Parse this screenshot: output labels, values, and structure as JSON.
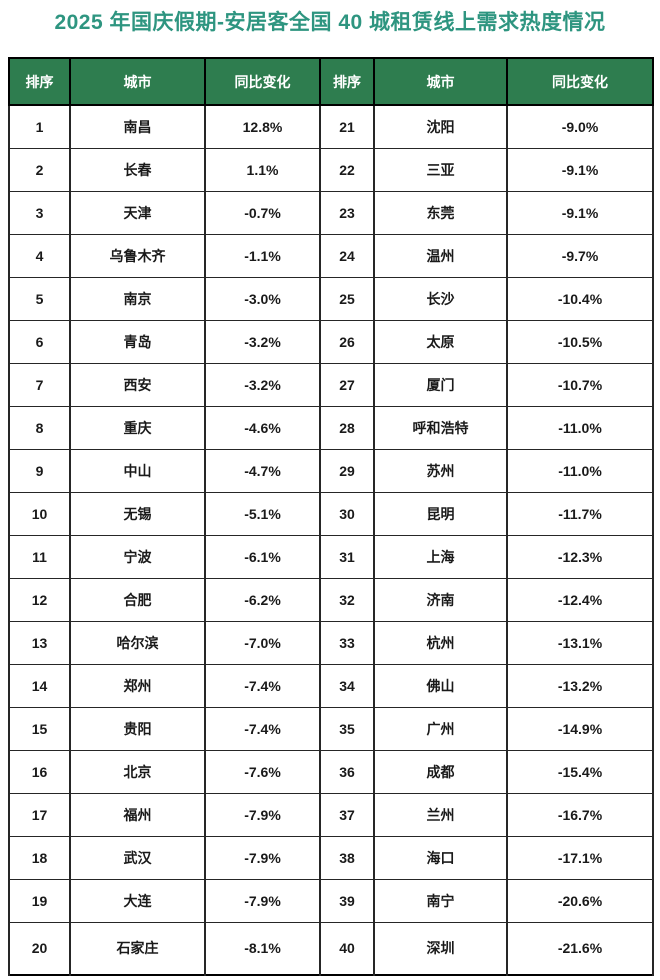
{
  "page": {
    "title": "2025 年国庆假期-安居客全国 40 城租赁线上需求热度情况"
  },
  "colors": {
    "title_text": "#2e9580",
    "header_bg": "#2e7d4f",
    "header_text": "#ffffff",
    "cell_text": "#1a1a1a",
    "border": "#000000",
    "background": "#ffffff"
  },
  "table": {
    "headers": [
      "排序",
      "城市",
      "同比变化",
      "排序",
      "城市",
      "同比变化"
    ]
  },
  "chart_data": {
    "type": "table",
    "title": "2025 年国庆假期-安居客全国 40 城租赁线上需求热度情况",
    "columns": [
      "排序",
      "城市",
      "同比变化"
    ],
    "layout_hint": "40 rows split into two side-by-side halves: ranks 1-20 left, ranks 21-40 right",
    "rows": [
      {
        "rank": "1",
        "city": "南昌",
        "change": "12.8%"
      },
      {
        "rank": "2",
        "city": "长春",
        "change": "1.1%"
      },
      {
        "rank": "3",
        "city": "天津",
        "change": "-0.7%"
      },
      {
        "rank": "4",
        "city": "乌鲁木齐",
        "change": "-1.1%"
      },
      {
        "rank": "5",
        "city": "南京",
        "change": "-3.0%"
      },
      {
        "rank": "6",
        "city": "青岛",
        "change": "-3.2%"
      },
      {
        "rank": "7",
        "city": "西安",
        "change": "-3.2%"
      },
      {
        "rank": "8",
        "city": "重庆",
        "change": "-4.6%"
      },
      {
        "rank": "9",
        "city": "中山",
        "change": "-4.7%"
      },
      {
        "rank": "10",
        "city": "无锡",
        "change": "-5.1%"
      },
      {
        "rank": "11",
        "city": "宁波",
        "change": "-6.1%"
      },
      {
        "rank": "12",
        "city": "合肥",
        "change": "-6.2%"
      },
      {
        "rank": "13",
        "city": "哈尔滨",
        "change": "-7.0%"
      },
      {
        "rank": "14",
        "city": "郑州",
        "change": "-7.4%"
      },
      {
        "rank": "15",
        "city": "贵阳",
        "change": "-7.4%"
      },
      {
        "rank": "16",
        "city": "北京",
        "change": "-7.6%"
      },
      {
        "rank": "17",
        "city": "福州",
        "change": "-7.9%"
      },
      {
        "rank": "18",
        "city": "武汉",
        "change": "-7.9%"
      },
      {
        "rank": "19",
        "city": "大连",
        "change": "-7.9%"
      },
      {
        "rank": "20",
        "city": "石家庄",
        "change": "-8.1%"
      },
      {
        "rank": "21",
        "city": "沈阳",
        "change": "-9.0%"
      },
      {
        "rank": "22",
        "city": "三亚",
        "change": "-9.1%"
      },
      {
        "rank": "23",
        "city": "东莞",
        "change": "-9.1%"
      },
      {
        "rank": "24",
        "city": "温州",
        "change": "-9.7%"
      },
      {
        "rank": "25",
        "city": "长沙",
        "change": "-10.4%"
      },
      {
        "rank": "26",
        "city": "太原",
        "change": "-10.5%"
      },
      {
        "rank": "27",
        "city": "厦门",
        "change": "-10.7%"
      },
      {
        "rank": "28",
        "city": "呼和浩特",
        "change": "-11.0%"
      },
      {
        "rank": "29",
        "city": "苏州",
        "change": "-11.0%"
      },
      {
        "rank": "30",
        "city": "昆明",
        "change": "-11.7%"
      },
      {
        "rank": "31",
        "city": "上海",
        "change": "-12.3%"
      },
      {
        "rank": "32",
        "city": "济南",
        "change": "-12.4%"
      },
      {
        "rank": "33",
        "city": "杭州",
        "change": "-13.1%"
      },
      {
        "rank": "34",
        "city": "佛山",
        "change": "-13.2%"
      },
      {
        "rank": "35",
        "city": "广州",
        "change": "-14.9%"
      },
      {
        "rank": "36",
        "city": "成都",
        "change": "-15.4%"
      },
      {
        "rank": "37",
        "city": "兰州",
        "change": "-16.7%"
      },
      {
        "rank": "38",
        "city": "海口",
        "change": "-17.1%"
      },
      {
        "rank": "39",
        "city": "南宁",
        "change": "-20.6%"
      },
      {
        "rank": "40",
        "city": "深圳",
        "change": "-21.6%"
      }
    ]
  }
}
